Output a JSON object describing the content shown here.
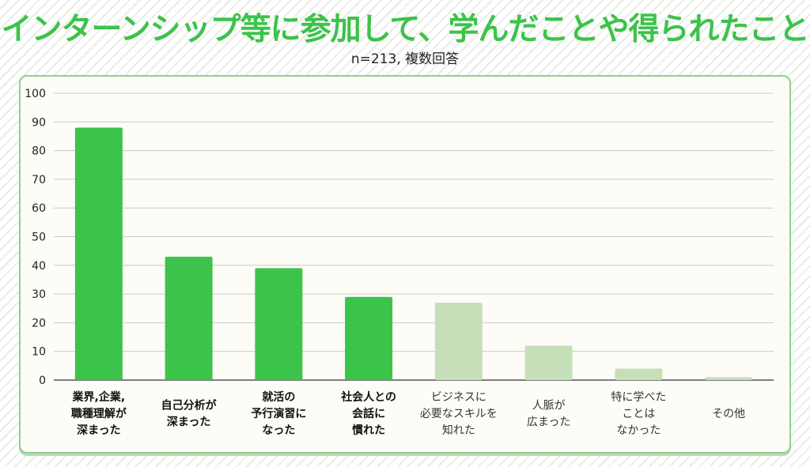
{
  "title": "インターンシップ等に参加して、学んだことや得られたこと",
  "subtitle": "n=213, 複数回答",
  "colors": {
    "highlight": "#3cc34a",
    "muted": "#c5e0b8",
    "border": "#8fd08a",
    "background": "#fdfcf7"
  },
  "chart_data": {
    "type": "bar",
    "ylim": [
      0,
      100
    ],
    "yticks": [
      0,
      10,
      20,
      30,
      40,
      50,
      60,
      70,
      80,
      90,
      100
    ],
    "grid": true,
    "categories": [
      {
        "lines": [
          "業界,企業,",
          "職種理解が",
          "深まった"
        ],
        "value": 88,
        "highlight": true
      },
      {
        "lines": [
          "自己分析が",
          "深まった"
        ],
        "value": 43,
        "highlight": true
      },
      {
        "lines": [
          "就活の",
          "予行演習に",
          "なった"
        ],
        "value": 39,
        "highlight": true
      },
      {
        "lines": [
          "社会人との",
          "会話に",
          "慣れた"
        ],
        "value": 29,
        "highlight": true
      },
      {
        "lines": [
          "ビジネスに",
          "必要なスキルを",
          "知れた"
        ],
        "value": 27,
        "highlight": false
      },
      {
        "lines": [
          "人脈が",
          "広まった"
        ],
        "value": 12,
        "highlight": false
      },
      {
        "lines": [
          "特に学べた",
          "ことは",
          "なかった"
        ],
        "value": 4,
        "highlight": false
      },
      {
        "lines": [
          "その他"
        ],
        "value": 1,
        "highlight": false
      }
    ]
  }
}
